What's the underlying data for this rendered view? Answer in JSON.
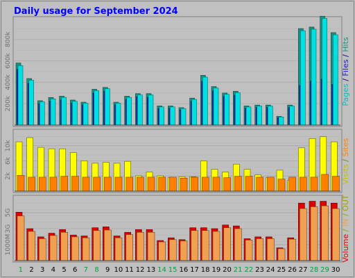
{
  "chart_data": [
    {
      "type": "bar",
      "title": "Daily usage for September 2024",
      "panel": "hits",
      "categories": [
        "1",
        "2",
        "3",
        "4",
        "5",
        "6",
        "7",
        "8",
        "9",
        "10",
        "11",
        "12",
        "13",
        "14",
        "15",
        "16",
        "17",
        "18",
        "19",
        "20",
        "21",
        "22",
        "23",
        "24",
        "25",
        "26",
        "27",
        "28",
        "29",
        "30"
      ],
      "weekend_days": [
        "1",
        "7",
        "8",
        "14",
        "15",
        "21",
        "22",
        "28",
        "29"
      ],
      "ylim": [
        0,
        1000000
      ],
      "ticks": [
        "200k",
        "400k",
        "600k",
        "800k"
      ],
      "series": [
        {
          "name": "Hits",
          "color": "#00e0e0",
          "values": [
            556000,
            419000,
            218000,
            245000,
            259000,
            223000,
            205000,
            322000,
            340000,
            205000,
            259000,
            282000,
            282000,
            170000,
            170000,
            155000,
            240000,
            448000,
            346000,
            288000,
            303000,
            170000,
            178000,
            178000,
            76000,
            178000,
            882000,
            896000,
            997000,
            844000
          ]
        },
        {
          "name": "Files",
          "color": "#1a1ac0",
          "values": [
            520000,
            390000,
            200000,
            225000,
            235000,
            205000,
            190000,
            300000,
            315000,
            190000,
            240000,
            265000,
            260000,
            155000,
            158000,
            143000,
            222000,
            410000,
            320000,
            268000,
            280000,
            158000,
            165000,
            165000,
            70000,
            165000,
            370000,
            410000,
            430000,
            380000
          ]
        },
        {
          "name": "Pages",
          "color": "#1a9080",
          "values": [
            580000,
            435000,
            228000,
            258000,
            270000,
            234000,
            214000,
            335000,
            352000,
            214000,
            270000,
            294000,
            294000,
            179000,
            179000,
            163000,
            252000,
            465000,
            360000,
            300000,
            316000,
            179000,
            187000,
            187000,
            82000,
            187000,
            902000,
            916000,
            1017000,
            864000
          ]
        }
      ],
      "legend": [
        "Pages",
        "Files",
        "Hits"
      ]
    },
    {
      "type": "bar",
      "panel": "visits",
      "categories": [
        "1",
        "2",
        "3",
        "4",
        "5",
        "6",
        "7",
        "8",
        "9",
        "10",
        "11",
        "12",
        "13",
        "14",
        "15",
        "16",
        "17",
        "18",
        "19",
        "20",
        "21",
        "22",
        "23",
        "24",
        "25",
        "26",
        "27",
        "28",
        "29",
        "30"
      ],
      "ylim": [
        0,
        13000
      ],
      "ticks": [
        "2k",
        "6k",
        "10k"
      ],
      "series": [
        {
          "name": "Visits",
          "color": "#ffff00",
          "values": [
            10600,
            11500,
            9400,
            9100,
            9100,
            8300,
            6500,
            6000,
            6200,
            6000,
            6400,
            3300,
            4100,
            3300,
            2900,
            3100,
            3100,
            6500,
            4700,
            4100,
            5800,
            4700,
            3500,
            2900,
            4500,
            2300,
            9300,
            11300,
            11700,
            10600
          ]
        },
        {
          "name": "Sites",
          "color": "#ff8000",
          "values": [
            3400,
            3000,
            3000,
            3000,
            3200,
            3200,
            3000,
            3000,
            3000,
            3000,
            3000,
            3000,
            3000,
            3000,
            3000,
            2800,
            3000,
            3000,
            3000,
            2900,
            3200,
            3200,
            3000,
            3000,
            2600,
            3000,
            3000,
            3000,
            3600,
            3200
          ]
        }
      ],
      "legend": [
        "Sites",
        "Visits"
      ]
    },
    {
      "type": "bar",
      "panel": "volume",
      "categories": [
        "1",
        "2",
        "3",
        "4",
        "5",
        "6",
        "7",
        "8",
        "9",
        "10",
        "11",
        "12",
        "13",
        "14",
        "15",
        "16",
        "17",
        "18",
        "19",
        "20",
        "21",
        "22",
        "23",
        "24",
        "25",
        "26",
        "27",
        "28",
        "29",
        "30"
      ],
      "ylim": [
        0,
        7000
      ],
      "ticks": [
        "1000M",
        "3G",
        "5G"
      ],
      "series": [
        {
          "name": "Volume",
          "color": "#e00000",
          "values": [
            5300,
            3500,
            2600,
            3000,
            3400,
            2800,
            2700,
            3600,
            3700,
            2700,
            3100,
            3400,
            3400,
            2200,
            2500,
            2300,
            3600,
            3600,
            3500,
            3900,
            3800,
            2400,
            2600,
            2600,
            1400,
            2500,
            6300,
            6500,
            6500,
            6300
          ]
        },
        {
          "name": "IN",
          "color": "#f0a050",
          "values": [
            4900,
            3200,
            2400,
            2750,
            3100,
            2600,
            2500,
            3300,
            3350,
            2500,
            2850,
            3100,
            3100,
            2050,
            2300,
            2150,
            3300,
            3300,
            3200,
            3600,
            3500,
            2250,
            2400,
            2400,
            1300,
            2350,
            5700,
            5900,
            6000,
            5700
          ]
        }
      ],
      "legend": [
        "Volume",
        "IN",
        "OUT"
      ]
    }
  ],
  "colors": {
    "background": "#c0c0c0",
    "panel": "#c0c0c0",
    "title": "#0000ff",
    "weekend_label": "#00a040",
    "weekday_label": "#000000",
    "tick_label": "#707070",
    "separator": "#606060",
    "legend_out": "#a0a000"
  }
}
